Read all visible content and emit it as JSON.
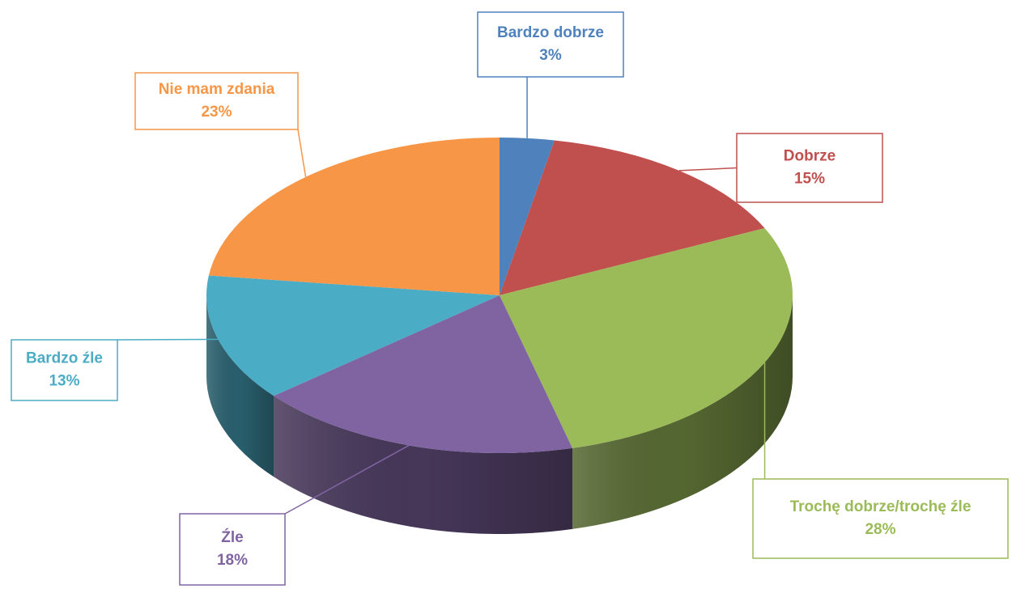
{
  "chart_data": {
    "type": "pie",
    "categories": [
      "Bardzo dobrze",
      "Dobrze",
      "Trochę dobrze/trochę źle",
      "Źle",
      "Bardzo źle",
      "Nie mam zdania"
    ],
    "values": [
      3,
      15,
      28,
      18,
      13,
      23
    ],
    "value_labels": [
      "3%",
      "15%",
      "28%",
      "18%",
      "13%",
      "23%"
    ],
    "colors": [
      "#4f81bd",
      "#c0504d",
      "#9bbb59",
      "#8064a2",
      "#4bacc6",
      "#f79646"
    ]
  }
}
